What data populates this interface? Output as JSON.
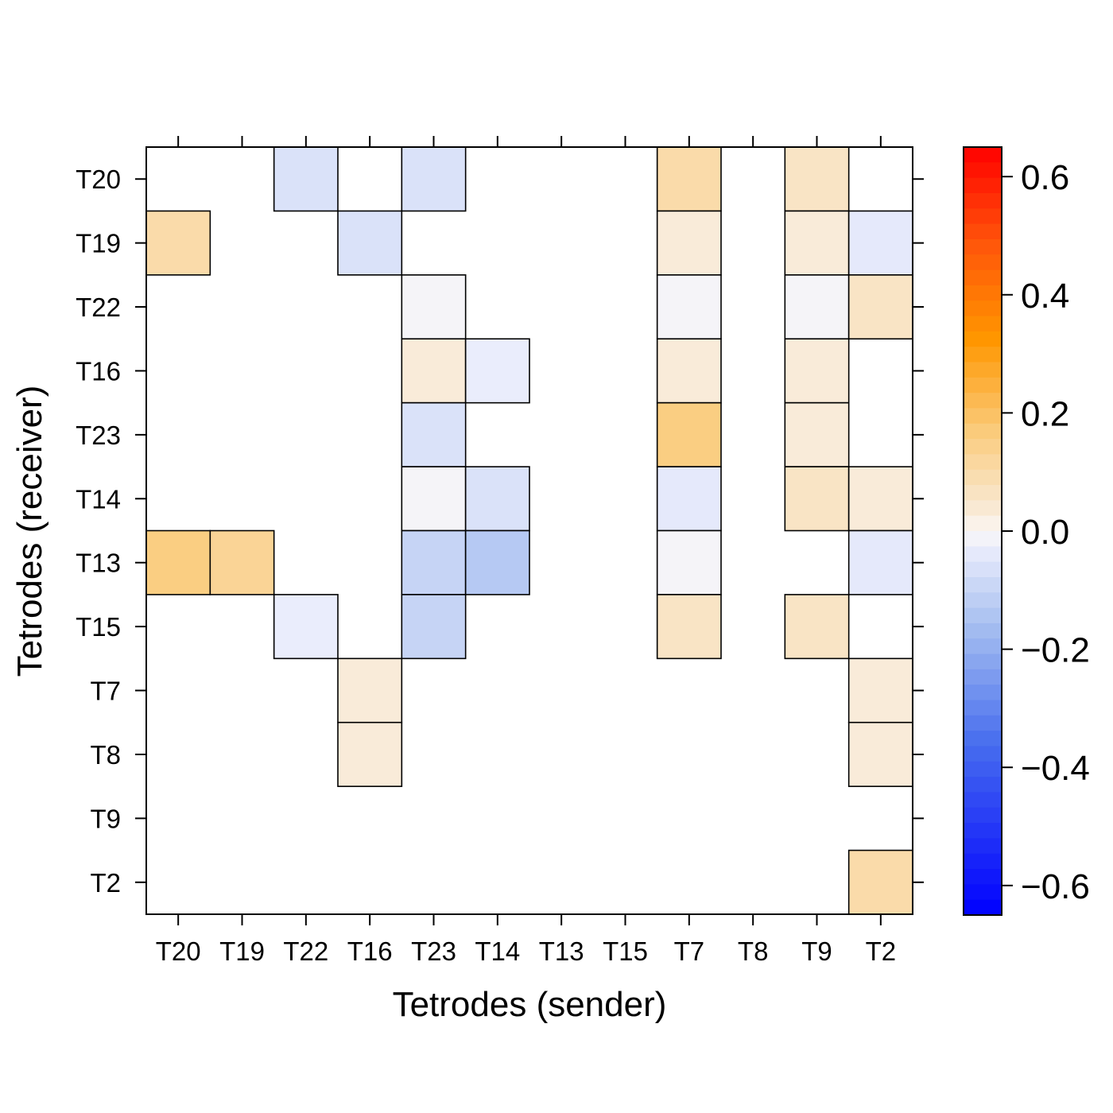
{
  "chart_data": {
    "type": "heatmap",
    "xlabel": "Tetrodes (sender)",
    "ylabel": "Tetrodes (receiver)",
    "x_categories": [
      "T20",
      "T19",
      "T22",
      "T16",
      "T23",
      "T14",
      "T13",
      "T15",
      "T7",
      "T8",
      "T9",
      "T2"
    ],
    "y_categories": [
      "T20",
      "T19",
      "T22",
      "T16",
      "T23",
      "T14",
      "T13",
      "T15",
      "T7",
      "T8",
      "T9",
      "T2"
    ],
    "cells": [
      {
        "sender": "T22",
        "receiver": "T20",
        "value": -0.06
      },
      {
        "sender": "T23",
        "receiver": "T20",
        "value": -0.06
      },
      {
        "sender": "T7",
        "receiver": "T20",
        "value": 0.1
      },
      {
        "sender": "T9",
        "receiver": "T20",
        "value": 0.06
      },
      {
        "sender": "T20",
        "receiver": "T19",
        "value": 0.1
      },
      {
        "sender": "T16",
        "receiver": "T19",
        "value": -0.06
      },
      {
        "sender": "T7",
        "receiver": "T19",
        "value": 0.03
      },
      {
        "sender": "T9",
        "receiver": "T19",
        "value": 0.03
      },
      {
        "sender": "T2",
        "receiver": "T19",
        "value": -0.04
      },
      {
        "sender": "T23",
        "receiver": "T22",
        "value": -0.01
      },
      {
        "sender": "T7",
        "receiver": "T22",
        "value": -0.01
      },
      {
        "sender": "T9",
        "receiver": "T22",
        "value": -0.01
      },
      {
        "sender": "T2",
        "receiver": "T22",
        "value": 0.06
      },
      {
        "sender": "T23",
        "receiver": "T16",
        "value": 0.03
      },
      {
        "sender": "T14",
        "receiver": "T16",
        "value": -0.03
      },
      {
        "sender": "T7",
        "receiver": "T16",
        "value": 0.03
      },
      {
        "sender": "T9",
        "receiver": "T16",
        "value": 0.03
      },
      {
        "sender": "T23",
        "receiver": "T23",
        "value": -0.06
      },
      {
        "sender": "T7",
        "receiver": "T23",
        "value": 0.16
      },
      {
        "sender": "T9",
        "receiver": "T23",
        "value": 0.03
      },
      {
        "sender": "T23",
        "receiver": "T14",
        "value": -0.01
      },
      {
        "sender": "T14",
        "receiver": "T14",
        "value": -0.06
      },
      {
        "sender": "T7",
        "receiver": "T14",
        "value": -0.04
      },
      {
        "sender": "T9",
        "receiver": "T14",
        "value": 0.06
      },
      {
        "sender": "T2",
        "receiver": "T14",
        "value": 0.03
      },
      {
        "sender": "T20",
        "receiver": "T13",
        "value": 0.16
      },
      {
        "sender": "T19",
        "receiver": "T13",
        "value": 0.13
      },
      {
        "sender": "T23",
        "receiver": "T13",
        "value": -0.1
      },
      {
        "sender": "T14",
        "receiver": "T13",
        "value": -0.13
      },
      {
        "sender": "T7",
        "receiver": "T13",
        "value": -0.01
      },
      {
        "sender": "T2",
        "receiver": "T13",
        "value": -0.04
      },
      {
        "sender": "T22",
        "receiver": "T15",
        "value": -0.03
      },
      {
        "sender": "T23",
        "receiver": "T15",
        "value": -0.1
      },
      {
        "sender": "T7",
        "receiver": "T15",
        "value": 0.06
      },
      {
        "sender": "T9",
        "receiver": "T15",
        "value": 0.06
      },
      {
        "sender": "T16",
        "receiver": "T7",
        "value": 0.03
      },
      {
        "sender": "T2",
        "receiver": "T7",
        "value": 0.03
      },
      {
        "sender": "T16",
        "receiver": "T8",
        "value": 0.03
      },
      {
        "sender": "T2",
        "receiver": "T8",
        "value": 0.03
      },
      {
        "sender": "T2",
        "receiver": "T2",
        "value": 0.1
      }
    ],
    "colorbar": {
      "range": [
        -0.65,
        0.65
      ],
      "ticks": [
        -0.6,
        -0.4,
        -0.2,
        0.0,
        0.2,
        0.4,
        0.6
      ],
      "tick_labels": [
        "−0.6",
        "−0.4",
        "−0.2",
        "0.0",
        "0.2",
        "0.4",
        "0.6"
      ],
      "low_color": "#0000ff",
      "mid_color": "#ffffff",
      "high_color": "#ff0000"
    }
  }
}
